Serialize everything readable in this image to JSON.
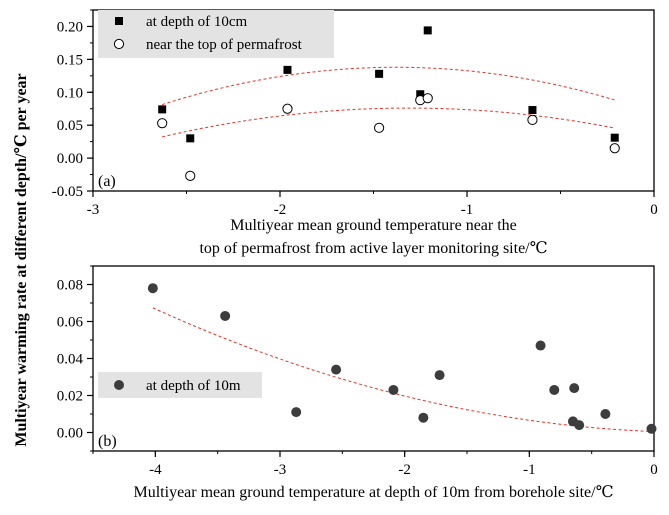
{
  "colors": {
    "marker_square": "#000000",
    "marker_circle_fill": "#ffffff",
    "marker_dot": "#3d3d3d",
    "fit_line": "#e8322a",
    "legend_bg": "#e3e3e3"
  },
  "ylabel": "Multiyear warming rate at different depth/℃ per year",
  "chart_data": [
    {
      "type": "scatter",
      "panel_label": "(a)",
      "xlabel_line1": "Multiyear mean ground temperature near the",
      "xlabel_line2": "top of permafrost from active layer monitoring site/℃",
      "xlim": [
        -3,
        0
      ],
      "ylim": [
        -0.05,
        0.225
      ],
      "xticks": [
        "-3",
        "-2",
        "-1",
        "0"
      ],
      "yticks": [
        "-0.05",
        "0.00",
        "0.05",
        "0.10",
        "0.15",
        "0.20"
      ],
      "legend_position": "top-left",
      "series": [
        {
          "name": "at depth of 10cm",
          "marker": "filled-square",
          "x": [
            -2.63,
            -2.48,
            -1.96,
            -1.47,
            -1.25,
            -1.21,
            -0.65,
            -0.21
          ],
          "y": [
            0.074,
            0.03,
            0.134,
            0.128,
            0.097,
            0.194,
            0.073,
            0.031
          ]
        },
        {
          "name": "near the top of permafrost",
          "marker": "open-circle",
          "x": [
            -2.63,
            -2.48,
            -1.96,
            -1.47,
            -1.25,
            -1.21,
            -0.65,
            -0.21
          ],
          "y": [
            0.053,
            -0.027,
            0.075,
            0.046,
            0.088,
            0.091,
            0.058,
            0.015
          ]
        }
      ],
      "fit_curves": [
        {
          "fits": "at depth of 10cm",
          "x": [
            -2.63,
            -0.21
          ],
          "a": -0.0363,
          "h": -1.38,
          "k": 0.138
        },
        {
          "fits": "near the top of permafrost",
          "x": [
            -2.63,
            -0.21
          ],
          "a": -0.0251,
          "h": -1.31,
          "k": 0.076
        }
      ]
    },
    {
      "type": "scatter",
      "panel_label": "(b)",
      "xlabel": "Multiyear mean ground temperature at depth of 10m from borehole site/℃",
      "xlim": [
        -4.5,
        0
      ],
      "ylim": [
        -0.01,
        0.09
      ],
      "xticks": [
        "-4",
        "-3",
        "-2",
        "-1",
        "0"
      ],
      "yticks": [
        "0.00",
        "0.02",
        "0.04",
        "0.06",
        "0.08"
      ],
      "legend_position": "left",
      "series": [
        {
          "name": "at depth of 10m",
          "marker": "filled-circle",
          "x": [
            -4.02,
            -3.44,
            -2.87,
            -2.55,
            -2.09,
            -1.85,
            -1.72,
            -0.91,
            -0.8,
            -0.65,
            -0.64,
            -0.6,
            -0.39,
            -0.02
          ],
          "y": [
            0.078,
            0.063,
            0.011,
            0.034,
            0.023,
            0.008,
            0.031,
            0.047,
            0.023,
            0.006,
            0.024,
            0.004,
            0.01,
            0.002
          ]
        }
      ],
      "fit_curves": [
        {
          "fits": "at depth of 10m",
          "x": [
            -4.02,
            0
          ],
          "a": 0.00348,
          "h": 0.38,
          "k": 0.0
        }
      ]
    }
  ]
}
